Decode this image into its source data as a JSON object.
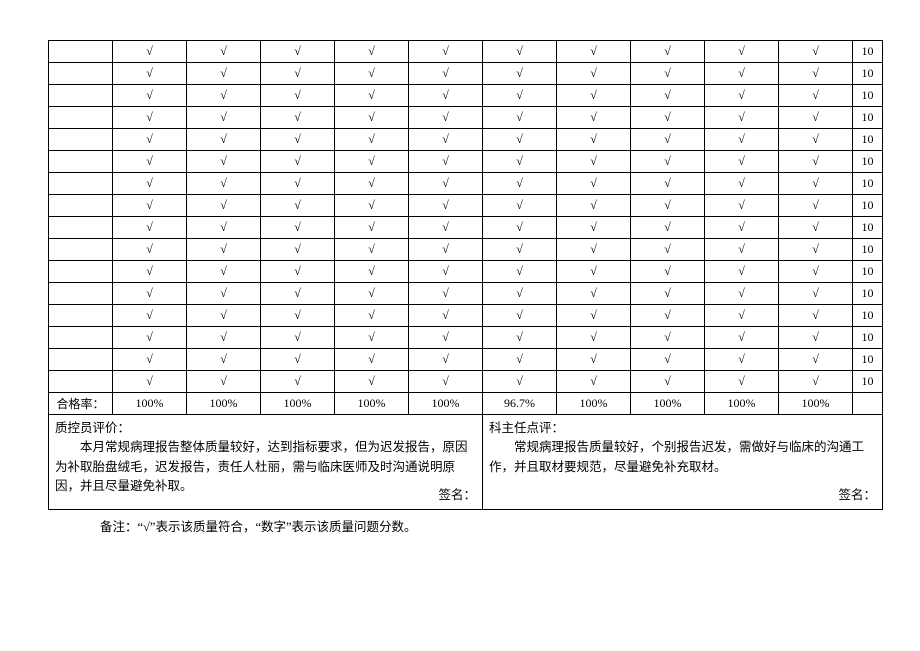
{
  "check_mark": "√",
  "rows": [
    {
      "first": "",
      "checks": [
        "√",
        "√",
        "√",
        "√",
        "√",
        "√",
        "√",
        "√",
        "√",
        "√"
      ],
      "last": "10"
    },
    {
      "first": "",
      "checks": [
        "√",
        "√",
        "√",
        "√",
        "√",
        "√",
        "√",
        "√",
        "√",
        "√"
      ],
      "last": "10"
    },
    {
      "first": "",
      "checks": [
        "√",
        "√",
        "√",
        "√",
        "√",
        "√",
        "√",
        "√",
        "√",
        "√"
      ],
      "last": "10"
    },
    {
      "first": "",
      "checks": [
        "√",
        "√",
        "√",
        "√",
        "√",
        "√",
        "√",
        "√",
        "√",
        "√"
      ],
      "last": "10"
    },
    {
      "first": "",
      "checks": [
        "√",
        "√",
        "√",
        "√",
        "√",
        "√",
        "√",
        "√",
        "√",
        "√"
      ],
      "last": "10"
    },
    {
      "first": "",
      "checks": [
        "√",
        "√",
        "√",
        "√",
        "√",
        "√",
        "√",
        "√",
        "√",
        "√"
      ],
      "last": "10"
    },
    {
      "first": "",
      "checks": [
        "√",
        "√",
        "√",
        "√",
        "√",
        "√",
        "√",
        "√",
        "√",
        "√"
      ],
      "last": "10"
    },
    {
      "first": "",
      "checks": [
        "√",
        "√",
        "√",
        "√",
        "√",
        "√",
        "√",
        "√",
        "√",
        "√"
      ],
      "last": "10"
    },
    {
      "first": "",
      "checks": [
        "√",
        "√",
        "√",
        "√",
        "√",
        "√",
        "√",
        "√",
        "√",
        "√"
      ],
      "last": "10"
    },
    {
      "first": "",
      "checks": [
        "√",
        "√",
        "√",
        "√",
        "√",
        "√",
        "√",
        "√",
        "√",
        "√"
      ],
      "last": "10"
    },
    {
      "first": "",
      "checks": [
        "√",
        "√",
        "√",
        "√",
        "√",
        "√",
        "√",
        "√",
        "√",
        "√"
      ],
      "last": "10"
    },
    {
      "first": "",
      "checks": [
        "√",
        "√",
        "√",
        "√",
        "√",
        "√",
        "√",
        "√",
        "√",
        "√"
      ],
      "last": "10"
    },
    {
      "first": "",
      "checks": [
        "√",
        "√",
        "√",
        "√",
        "√",
        "√",
        "√",
        "√",
        "√",
        "√"
      ],
      "last": "10"
    },
    {
      "first": "",
      "checks": [
        "√",
        "√",
        "√",
        "√",
        "√",
        "√",
        "√",
        "√",
        "√",
        "√"
      ],
      "last": "10"
    },
    {
      "first": "",
      "checks": [
        "√",
        "√",
        "√",
        "√",
        "√",
        "√",
        "√",
        "√",
        "√",
        "√"
      ],
      "last": "10"
    },
    {
      "first": "",
      "checks": [
        "√",
        "√",
        "√",
        "√",
        "√",
        "√",
        "√",
        "√",
        "√",
        "√"
      ],
      "last": "10"
    }
  ],
  "summary_row": {
    "label": "合格率：",
    "values": [
      "100%",
      "100%",
      "100%",
      "100%",
      "100%",
      "96.7%",
      "100%",
      "100%",
      "100%",
      "100%"
    ],
    "last": ""
  },
  "left_comment": {
    "title": "质控员评价：",
    "body": "本月常规病理报告整体质量较好，达到指标要求，但为迟发报告，原因为补取胎盘绒毛，迟发报告，责任人杜丽，需与临床医师及时沟通说明原因，并且尽量避免补取。",
    "signature": "签名："
  },
  "right_comment": {
    "title": "科主任点评：",
    "body": "常规病理报告质量较好，个别报告迟发，需做好与临床的沟通工作，并且取材要规范，尽量避免补充取材。",
    "signature": "签名："
  },
  "footnote": "备注：“√”表示该质量符合，“数字”表示该质量问题分数。"
}
